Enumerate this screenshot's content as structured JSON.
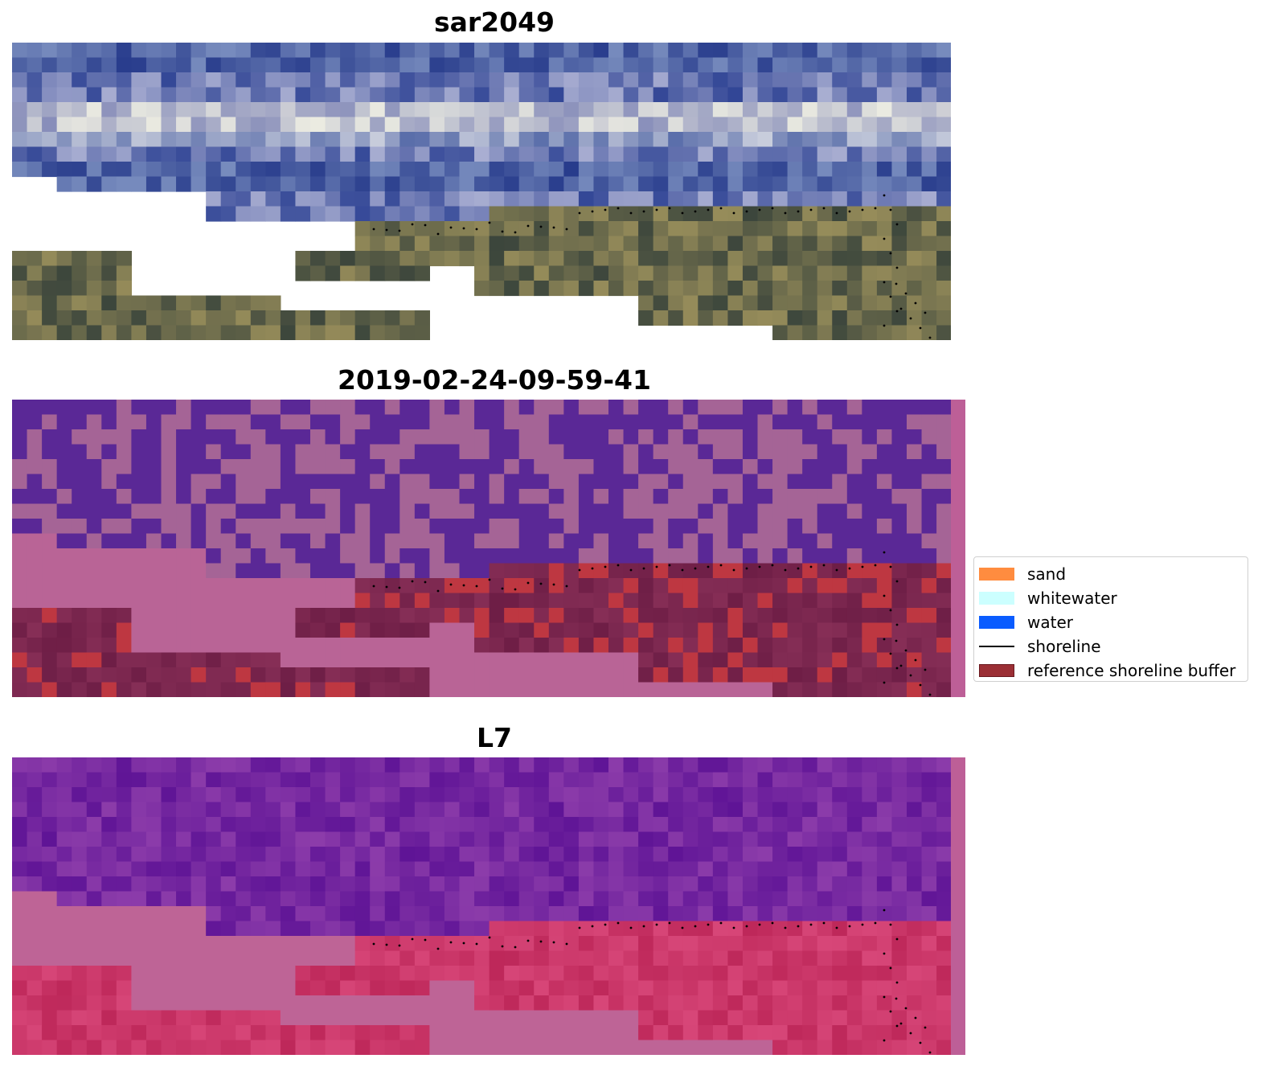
{
  "panels": [
    {
      "title": "sar2049",
      "kind": "rgb"
    },
    {
      "title": "2019-02-24-09-59-41",
      "kind": "classified"
    },
    {
      "title": "L7",
      "kind": "index"
    }
  ],
  "legend": {
    "items": [
      {
        "label": "sand",
        "color": "#ff8c3f",
        "type": "patch"
      },
      {
        "label": "whitewater",
        "color": "#ccffff",
        "type": "patch"
      },
      {
        "label": "water",
        "color": "#0a5cff",
        "type": "patch"
      },
      {
        "label": "shoreline",
        "color": "#000000",
        "type": "line"
      },
      {
        "label": "reference shoreline buffer",
        "color": "#9b2f35",
        "type": "patch"
      }
    ]
  },
  "colors": {
    "water_overlay": "#5a2b9a",
    "land_overlay": "#b9659a",
    "buffer_overlay": "#7a2250",
    "sand_overlay": "#c23a45"
  }
}
